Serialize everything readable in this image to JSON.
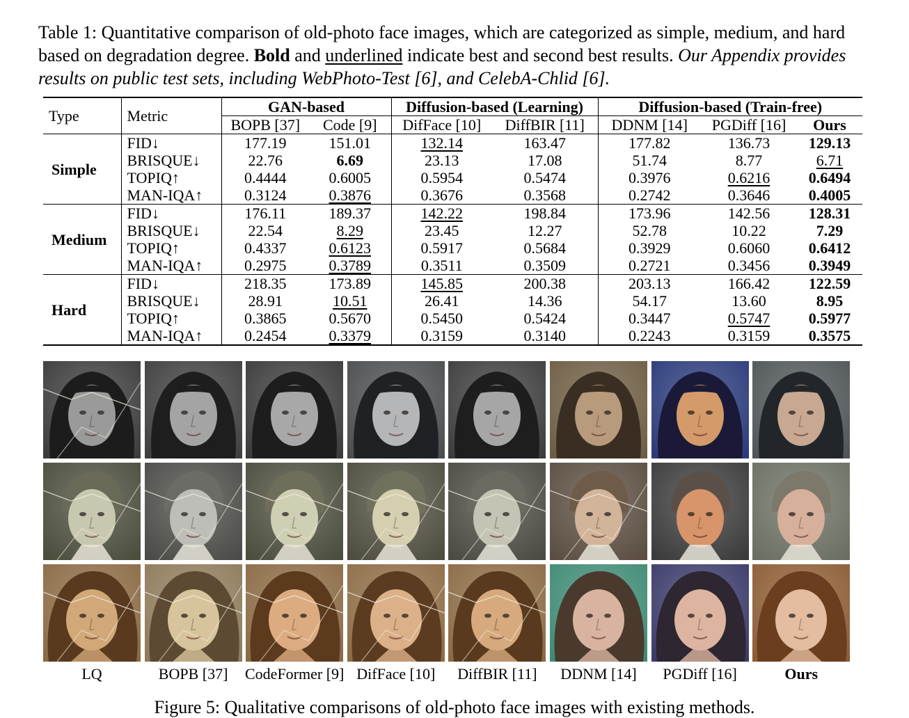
{
  "caption": {
    "prefix": "Table 1: Quantitative comparison of old-photo face images, which are categorized as simple, medium, and hard based on degradation degree. ",
    "bold_word": "Bold",
    "mid": " and ",
    "underlined_word": "underlined",
    "suffix": " indicate best and second best results. ",
    "italic": "Our Appendix provides results on public test sets, including WebPhoto-Test [6], and CelebA-Chlid [6]."
  },
  "table": {
    "header": {
      "type": "Type",
      "metric": "Metric",
      "groups": [
        "GAN-based",
        "Diffusion-based (Learning)",
        "Diffusion-based (Train-free)"
      ],
      "methods": [
        "BOPB [37]",
        "Code [9]",
        "DifFace [10]",
        "DiffBIR [11]",
        "DDNM [14]",
        "PGDiff [16]",
        "Ours"
      ]
    },
    "sections": [
      {
        "type": "Simple",
        "rows": [
          {
            "metric": "FID↓",
            "values": [
              "177.19",
              "151.01",
              "132.14",
              "163.47",
              "177.82",
              "136.73",
              "129.13"
            ],
            "best": 6,
            "second": 2
          },
          {
            "metric": "BRISQUE↓",
            "values": [
              "22.76",
              "6.69",
              "23.13",
              "17.08",
              "51.74",
              "8.77",
              "6.71"
            ],
            "best": 1,
            "second": 6
          },
          {
            "metric": "TOPIQ↑",
            "values": [
              "0.4444",
              "0.6005",
              "0.5954",
              "0.5474",
              "0.3976",
              "0.6216",
              "0.6494"
            ],
            "best": 6,
            "second": 5
          },
          {
            "metric": "MAN-IQA↑",
            "values": [
              "0.3124",
              "0.3876",
              "0.3676",
              "0.3568",
              "0.2742",
              "0.3646",
              "0.4005"
            ],
            "best": 6,
            "second": 1
          }
        ]
      },
      {
        "type": "Medium",
        "rows": [
          {
            "metric": "FID↓",
            "values": [
              "176.11",
              "189.37",
              "142.22",
              "198.84",
              "173.96",
              "142.56",
              "128.31"
            ],
            "best": 6,
            "second": 2
          },
          {
            "metric": "BRISQUE↓",
            "values": [
              "22.54",
              "8.29",
              "23.45",
              "12.27",
              "52.78",
              "10.22",
              "7.29"
            ],
            "best": 6,
            "second": 1
          },
          {
            "metric": "TOPIQ↑",
            "values": [
              "0.4337",
              "0.6123",
              "0.5917",
              "0.5684",
              "0.3929",
              "0.6060",
              "0.6412"
            ],
            "best": 6,
            "second": 1
          },
          {
            "metric": "MAN-IQA↑",
            "values": [
              "0.2975",
              "0.3789",
              "0.3511",
              "0.3509",
              "0.2721",
              "0.3456",
              "0.3949"
            ],
            "best": 6,
            "second": 1
          }
        ]
      },
      {
        "type": "Hard",
        "rows": [
          {
            "metric": "FID↓",
            "values": [
              "218.35",
              "173.89",
              "145.85",
              "200.38",
              "203.13",
              "166.42",
              "122.59"
            ],
            "best": 6,
            "second": 2
          },
          {
            "metric": "BRISQUE↓",
            "values": [
              "28.91",
              "10.51",
              "26.41",
              "14.36",
              "54.17",
              "13.60",
              "8.95"
            ],
            "best": 6,
            "second": 1
          },
          {
            "metric": "TOPIQ↑",
            "values": [
              "0.3865",
              "0.5670",
              "0.5450",
              "0.5424",
              "0.3447",
              "0.5747",
              "0.5977"
            ],
            "best": 6,
            "second": 5
          },
          {
            "metric": "MAN-IQA↑",
            "values": [
              "0.2454",
              "0.3379",
              "0.3159",
              "0.3140",
              "0.2243",
              "0.3159",
              "0.3575"
            ],
            "best": 6,
            "second": 1
          }
        ]
      }
    ]
  },
  "figure": {
    "column_labels": [
      "LQ",
      "BOPB [37]",
      "CodeFormer [9]",
      "DifFace [10]",
      "DiffBIR [11]",
      "DDNM [14]",
      "PGDiff [16]",
      "Ours"
    ],
    "bold_column": 7,
    "caption": "Figure 5: Qualitative comparisons of old-photo face images with existing methods.",
    "rows": [
      {
        "subject": "girl-bw",
        "tones": [
          {
            "bg": "#3b3b3b",
            "skin": "#9a9a9a",
            "hair": "#1c1c1c"
          },
          {
            "bg": "#3e3e3e",
            "skin": "#a4a4a4",
            "hair": "#1e1e1e"
          },
          {
            "bg": "#3a3a3a",
            "skin": "#a8a8a8",
            "hair": "#1d1d1d"
          },
          {
            "bg": "#4a4c4e",
            "skin": "#b4b6b8",
            "hair": "#202124"
          },
          {
            "bg": "#3c3c3c",
            "skin": "#a6a6a6",
            "hair": "#1e1e1e"
          },
          {
            "bg": "#6d5c43",
            "skin": "#b89a7c",
            "hair": "#3a2e22"
          },
          {
            "bg": "#2a3a7a",
            "skin": "#d49a6a",
            "hair": "#1a1a38"
          },
          {
            "bg": "#4f5456",
            "skin": "#c8a890",
            "hair": "#22262a"
          }
        ]
      },
      {
        "subject": "boy-bw",
        "tones": [
          {
            "bg": "#4a4c3c",
            "skin": "#c8c8b0",
            "hair": "#6a6a58"
          },
          {
            "bg": "#4a4a46",
            "skin": "#bebeb8",
            "hair": "#6c6c66"
          },
          {
            "bg": "#4a4c3c",
            "skin": "#cfcfb4",
            "hair": "#6e6e5a"
          },
          {
            "bg": "#4e4c3e",
            "skin": "#d4cfae",
            "hair": "#70705c"
          },
          {
            "bg": "#4a4a42",
            "skin": "#c4c4b4",
            "hair": "#6a6a60"
          },
          {
            "bg": "#5a4c40",
            "skin": "#d2b49a",
            "hair": "#6e5c48"
          },
          {
            "bg": "#3a3a3a",
            "skin": "#d8946a",
            "hair": "#5a5048"
          },
          {
            "bg": "#6a6e60",
            "skin": "#d6b09a",
            "hair": "#7c786a"
          }
        ]
      },
      {
        "subject": "woman-sepia",
        "tones": [
          {
            "bg": "#8a6a44",
            "skin": "#d2a878",
            "hair": "#5a3a1e"
          },
          {
            "bg": "#8e7a5a",
            "skin": "#d8c49c",
            "hair": "#5c4a32"
          },
          {
            "bg": "#8a6a44",
            "skin": "#dcac80",
            "hair": "#5c3a1e"
          },
          {
            "bg": "#8c6c44",
            "skin": "#dcb088",
            "hair": "#5c3c20"
          },
          {
            "bg": "#8a6a44",
            "skin": "#d6aa7c",
            "hair": "#5a3a1e"
          },
          {
            "bg": "#3e8a74",
            "skin": "#d8b4a0",
            "hair": "#4a3a2e"
          },
          {
            "bg": "#3a3a6a",
            "skin": "#dcb4a0",
            "hair": "#2e2630"
          },
          {
            "bg": "#8c5c34",
            "skin": "#e4bca0",
            "hair": "#6a3e1e"
          }
        ]
      }
    ]
  }
}
